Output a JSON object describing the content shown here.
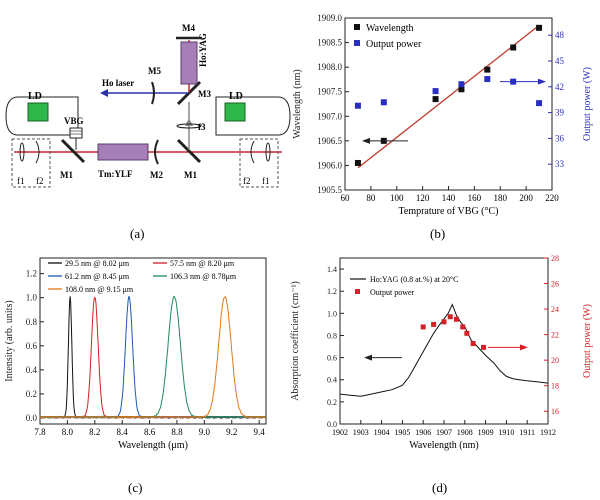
{
  "panels": [
    {
      "id": "a",
      "label": "(a)"
    },
    {
      "id": "b",
      "label": "(b)"
    },
    {
      "id": "c",
      "label": "(c)"
    },
    {
      "id": "d",
      "label": "(d)"
    }
  ],
  "setup": {
    "labels": {
      "M4": "M4",
      "HoYAG": "Ho:YAG",
      "M5": "M5",
      "M3": "M3",
      "HoLaser": "Ho laser",
      "LD_left": "LD",
      "LD_right": "LD",
      "VBG": "VBG",
      "M1_left": "M1",
      "TmYLF": "Tm:YLF",
      "M2": "M2",
      "M1_right": "M1",
      "f3": "f3",
      "f1_left": "f1",
      "f2_left": "f2",
      "f2_right": "f2",
      "f1_right": "f1"
    },
    "colors": {
      "ld": "#2eb84b",
      "beam_red": "#c2262e",
      "beam_blue": "#2a32a8",
      "crystal": "#a77fb8"
    }
  },
  "chart_data": [
    {
      "panel": "b",
      "type": "scatter",
      "xlabel": "Temprature of VBG (°C)",
      "ylabel": "Wavelength (nm)",
      "y2label": "Output power (W)",
      "xlim": [
        60,
        220
      ],
      "xticks": [
        "60",
        "80",
        "100",
        "120",
        "140",
        "160",
        "180",
        "200",
        "220"
      ],
      "ylim": [
        1905.5,
        1909.0
      ],
      "yticks": [
        "1905.5",
        "1906.0",
        "1906.5",
        "1907.0",
        "1907.5",
        "1908.0",
        "1908.5",
        "1909.0"
      ],
      "y2lim": [
        30,
        50
      ],
      "y2ticks": [
        "33",
        "36",
        "39",
        "42",
        "45",
        "48"
      ],
      "legend": [
        "Wavelength",
        "Output power"
      ],
      "legend_position": "top-left",
      "series": [
        {
          "name": "Wavelength",
          "axis": "left",
          "color": "#111111",
          "x": [
            70,
            90,
            130,
            150,
            170,
            190,
            210
          ],
          "y": [
            1906.05,
            1906.5,
            1907.35,
            1907.55,
            1907.95,
            1908.4,
            1908.8
          ]
        },
        {
          "name": "Output power",
          "axis": "right",
          "color": "#2a2fc2",
          "x": [
            70,
            90,
            130,
            150,
            170,
            190,
            210
          ],
          "y": [
            39.8,
            40.2,
            41.5,
            42.3,
            42.9,
            42.6,
            40.1
          ]
        }
      ],
      "fit": {
        "color": "#c0392b",
        "x": [
          70,
          210
        ],
        "y": [
          1905.95,
          1908.85
        ]
      }
    },
    {
      "panel": "c",
      "type": "line",
      "xlabel": "Wavelength (μm)",
      "ylabel": "Intensity (arb. units)",
      "xlim": [
        7.8,
        9.45
      ],
      "xticks": [
        "7.8",
        "8.0",
        "8.2",
        "8.4",
        "8.6",
        "8.8",
        "9.0",
        "9.2",
        "9.4"
      ],
      "ylim": [
        -0.05,
        1.33
      ],
      "yticks": [
        "0.0",
        "0.2",
        "0.4",
        "0.6",
        "0.8",
        "1.0",
        "1.2"
      ],
      "legend_position": "top",
      "series": [
        {
          "name": "29.5 nm @ 8.02 μm",
          "color": "#111111",
          "center": 8.02,
          "fwhm": 0.0295
        },
        {
          "name": "57.5 nm @ 8.20 μm",
          "color": "#d42027",
          "center": 8.2,
          "fwhm": 0.0575
        },
        {
          "name": "61.2 nm @ 8.45 μm",
          "color": "#1c5ab0",
          "center": 8.45,
          "fwhm": 0.0612
        },
        {
          "name": "106.3 nm @ 8.78μm",
          "color": "#1f8c5a",
          "center": 8.78,
          "fwhm": 0.1063
        },
        {
          "name": "108.0 nm @ 9.15 μm",
          "color": "#e07a1a",
          "center": 9.15,
          "fwhm": 0.108
        }
      ]
    },
    {
      "panel": "d",
      "type": "line",
      "xlabel": "Wavelength (nm)",
      "ylabel": "Absorption coefficient (cm⁻¹)",
      "y2label": "Output power (W)",
      "xlim": [
        1902,
        1912
      ],
      "xticks": [
        "1902",
        "1903",
        "1904",
        "1905",
        "1906",
        "1907",
        "1908",
        "1909",
        "1910",
        "1911",
        "1912"
      ],
      "ylim": [
        0,
        1.5
      ],
      "yticks": [
        "0.0",
        "0.2",
        "0.4",
        "0.6",
        "0.8",
        "1.0",
        "1.2",
        "1.4"
      ],
      "y2lim": [
        15,
        28
      ],
      "y2ticks": [
        "16",
        "18",
        "20",
        "22",
        "24",
        "26",
        "28"
      ],
      "legend": [
        "Ho:YAG (0.8 at.%) at 20°C",
        "Output power"
      ],
      "legend_position": "top-left",
      "series": [
        {
          "name": "Ho:YAG (0.8 at.%) at 20°C",
          "axis": "left",
          "color": "#111111",
          "x": [
            1902,
            1902.5,
            1903,
            1903.5,
            1904,
            1904.5,
            1905,
            1905.3,
            1905.6,
            1905.9,
            1906.2,
            1906.5,
            1906.8,
            1907.0,
            1907.2,
            1907.4,
            1907.6,
            1907.8,
            1908.0,
            1908.3,
            1908.6,
            1909.0,
            1909.4,
            1909.7,
            1910.0,
            1910.3,
            1910.6,
            1911.0,
            1911.5,
            1912
          ],
          "y": [
            0.27,
            0.26,
            0.25,
            0.27,
            0.29,
            0.31,
            0.35,
            0.42,
            0.52,
            0.62,
            0.72,
            0.82,
            0.9,
            0.95,
            1.0,
            1.08,
            0.98,
            0.92,
            0.88,
            0.76,
            0.7,
            0.62,
            0.55,
            0.48,
            0.43,
            0.41,
            0.4,
            0.39,
            0.38,
            0.37
          ]
        },
        {
          "name": "Output power",
          "axis": "right",
          "color": "#d42027",
          "x": [
            1906.0,
            1906.5,
            1907.0,
            1907.3,
            1907.6,
            1907.9,
            1908.1,
            1908.4,
            1908.9
          ],
          "y": [
            22.6,
            22.8,
            23.0,
            23.4,
            23.2,
            22.6,
            22.1,
            21.3,
            21.0
          ]
        }
      ]
    }
  ]
}
